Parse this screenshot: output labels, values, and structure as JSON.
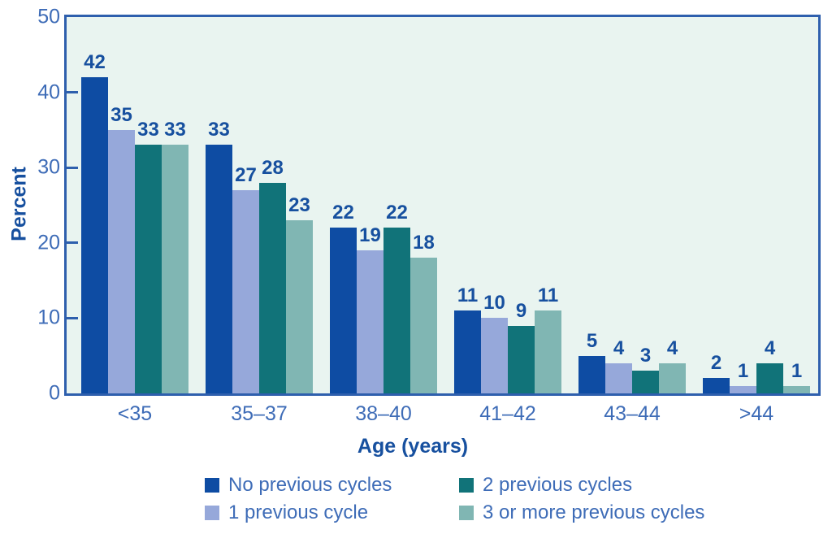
{
  "chart_data": {
    "type": "bar",
    "title": "",
    "xlabel": "Age (years)",
    "ylabel": "Percent",
    "ylim": [
      0,
      50
    ],
    "yticks": [
      0,
      10,
      20,
      30,
      40,
      50
    ],
    "grid": false,
    "bar_value_labels": true,
    "legend_position": "bottom",
    "plot_bg_color": "#e9f4f0",
    "axis_color": "#2e5fad",
    "tick_text_color": "#3e6cb7",
    "label_text_color": "#17509f",
    "categories": [
      "<35",
      "35–37",
      "38–40",
      "41–42",
      "43–44",
      ">44"
    ],
    "series": [
      {
        "name": "No previous cycles",
        "color": "#0e4ca3",
        "values": [
          42,
          33,
          22,
          11,
          5,
          2
        ]
      },
      {
        "name": "1 previous cycle",
        "color": "#96a8da",
        "values": [
          35,
          27,
          19,
          10,
          4,
          1
        ]
      },
      {
        "name": "2 previous cycles",
        "color": "#117379",
        "values": [
          33,
          28,
          22,
          9,
          3,
          4
        ]
      },
      {
        "name": "3 or more previous cycles",
        "color": "#80b6b3",
        "values": [
          33,
          23,
          18,
          11,
          4,
          1
        ]
      }
    ]
  }
}
